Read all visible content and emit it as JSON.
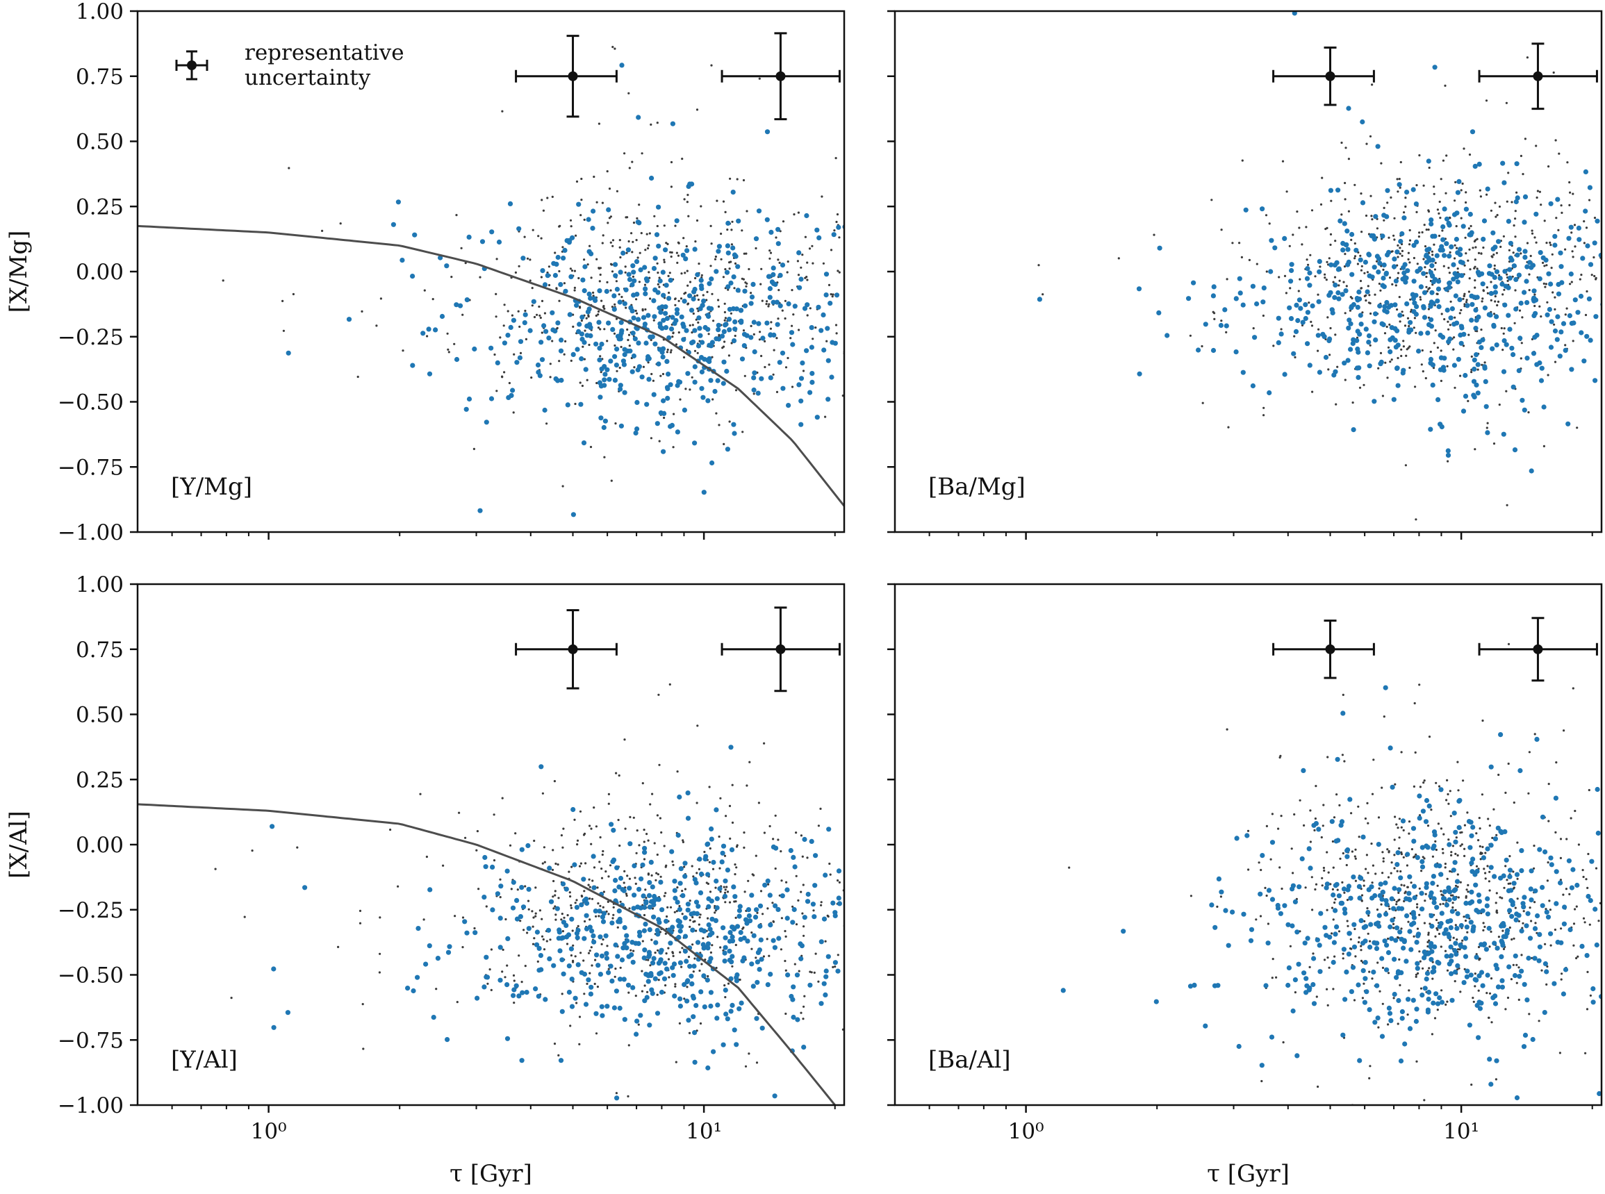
{
  "figure": {
    "legend_label_line1": "representative",
    "legend_label_line2": "uncertainty"
  },
  "colors": {
    "highlight": "#1f77b4",
    "background_points": "#3a3a3a",
    "fit_line": "#4d4d4d",
    "errorbar": "#111111",
    "axis": "#111111"
  },
  "chart_data": [
    {
      "type": "scatter",
      "id": "y-mg",
      "panel_label": "[Y/Mg]",
      "ylabel": "[X/Mg]",
      "xlabel": "",
      "xscale": "log",
      "xlim": [
        0.5,
        21
      ],
      "ylim": [
        -1.0,
        1.0
      ],
      "x_ticks": [
        1,
        10
      ],
      "x_tick_labels": [
        "10⁰",
        "10¹"
      ],
      "y_ticks": [
        -1.0,
        -0.75,
        -0.5,
        -0.25,
        0.0,
        0.25,
        0.5,
        0.75,
        1.0
      ],
      "y_tick_labels": [
        "−1.00",
        "−0.75",
        "−0.50",
        "−0.25",
        "0.00",
        "0.25",
        "0.50",
        "0.75",
        "1.00"
      ],
      "show_x_tick_labels": false,
      "show_y_tick_labels": true,
      "fit_line": true,
      "fit_anchor": [
        [
          0.5,
          0.175
        ],
        [
          1.0,
          0.15
        ],
        [
          2.0,
          0.1
        ],
        [
          3.0,
          0.03
        ],
        [
          5.0,
          -0.1
        ],
        [
          8.0,
          -0.25
        ],
        [
          12.0,
          -0.45
        ],
        [
          16.0,
          -0.65
        ],
        [
          21.0,
          -0.9
        ]
      ],
      "cloud": {
        "n_blue": 520,
        "n_gray": 620,
        "center_logx": 0.92,
        "spread_logx": 0.22,
        "center_y": -0.18,
        "spread_y": 0.2,
        "seed": 11
      },
      "errorbars": [
        {
          "x": 5.0,
          "y": 0.75,
          "xerr_low": 1.3,
          "xerr_high": 1.3,
          "yerr": 0.155
        },
        {
          "x": 15.0,
          "y": 0.75,
          "xerr_low": 4.0,
          "xerr_high": 5.5,
          "yerr": 0.165
        }
      ],
      "legend": true
    },
    {
      "type": "scatter",
      "id": "ba-mg",
      "panel_label": "[Ba/Mg]",
      "ylabel": "",
      "xlabel": "",
      "xscale": "log",
      "xlim": [
        0.5,
        21
      ],
      "ylim": [
        -1.0,
        1.0
      ],
      "x_ticks": [
        1,
        10
      ],
      "x_tick_labels": [
        "10⁰",
        "10¹"
      ],
      "y_ticks": [
        -1.0,
        -0.75,
        -0.5,
        -0.25,
        0.0,
        0.25,
        0.5,
        0.75,
        1.0
      ],
      "y_tick_labels": [],
      "show_x_tick_labels": false,
      "show_y_tick_labels": false,
      "fit_line": false,
      "cloud": {
        "n_blue": 560,
        "n_gray": 650,
        "center_logx": 0.94,
        "spread_logx": 0.2,
        "center_y": -0.1,
        "spread_y": 0.2,
        "seed": 23
      },
      "errorbars": [
        {
          "x": 5.0,
          "y": 0.75,
          "xerr_low": 1.3,
          "xerr_high": 1.3,
          "yerr": 0.11
        },
        {
          "x": 15.0,
          "y": 0.75,
          "xerr_low": 4.0,
          "xerr_high": 5.5,
          "yerr": 0.125
        }
      ],
      "legend": false
    },
    {
      "type": "scatter",
      "id": "y-al",
      "panel_label": "[Y/Al]",
      "ylabel": "[X/Al]",
      "xlabel": "τ [Gyr]",
      "xscale": "log",
      "xlim": [
        0.5,
        21
      ],
      "ylim": [
        -1.0,
        1.0
      ],
      "x_ticks": [
        1,
        10
      ],
      "x_tick_labels": [
        "10⁰",
        "10¹"
      ],
      "y_ticks": [
        -1.0,
        -0.75,
        -0.5,
        -0.25,
        0.0,
        0.25,
        0.5,
        0.75,
        1.0
      ],
      "y_tick_labels": [
        "−1.00",
        "−0.75",
        "−0.50",
        "−0.25",
        "0.00",
        "0.25",
        "0.50",
        "0.75",
        "1.00"
      ],
      "show_x_tick_labels": true,
      "show_y_tick_labels": true,
      "fit_line": true,
      "fit_anchor": [
        [
          0.5,
          0.155
        ],
        [
          1.0,
          0.13
        ],
        [
          2.0,
          0.08
        ],
        [
          3.0,
          0.0
        ],
        [
          5.0,
          -0.14
        ],
        [
          8.0,
          -0.32
        ],
        [
          12.0,
          -0.55
        ],
        [
          16.0,
          -0.8
        ],
        [
          20.0,
          -1.0
        ]
      ],
      "cloud": {
        "n_blue": 540,
        "n_gray": 620,
        "center_logx": 0.9,
        "spread_logx": 0.22,
        "center_y": -0.35,
        "spread_y": 0.2,
        "seed": 37
      },
      "errorbars": [
        {
          "x": 5.0,
          "y": 0.75,
          "xerr_low": 1.3,
          "xerr_high": 1.3,
          "yerr": 0.15
        },
        {
          "x": 15.0,
          "y": 0.75,
          "xerr_low": 4.0,
          "xerr_high": 5.5,
          "yerr": 0.16
        }
      ],
      "legend": false
    },
    {
      "type": "scatter",
      "id": "ba-al",
      "panel_label": "[Ba/Al]",
      "ylabel": "",
      "xlabel": "τ [Gyr]",
      "xscale": "log",
      "xlim": [
        0.5,
        21
      ],
      "ylim": [
        -1.0,
        1.0
      ],
      "x_ticks": [
        1,
        10
      ],
      "x_tick_labels": [
        "10⁰",
        "10¹"
      ],
      "y_ticks": [
        -1.0,
        -0.75,
        -0.5,
        -0.25,
        0.0,
        0.25,
        0.5,
        0.75,
        1.0
      ],
      "y_tick_labels": [],
      "show_x_tick_labels": true,
      "show_y_tick_labels": false,
      "fit_line": false,
      "cloud": {
        "n_blue": 560,
        "n_gray": 640,
        "center_logx": 0.95,
        "spread_logx": 0.2,
        "center_y": -0.3,
        "spread_y": 0.22,
        "seed": 53
      },
      "errorbars": [
        {
          "x": 5.0,
          "y": 0.75,
          "xerr_low": 1.3,
          "xerr_high": 1.3,
          "yerr": 0.11
        },
        {
          "x": 15.0,
          "y": 0.75,
          "xerr_low": 4.0,
          "xerr_high": 5.5,
          "yerr": 0.12
        }
      ],
      "legend": false
    }
  ]
}
